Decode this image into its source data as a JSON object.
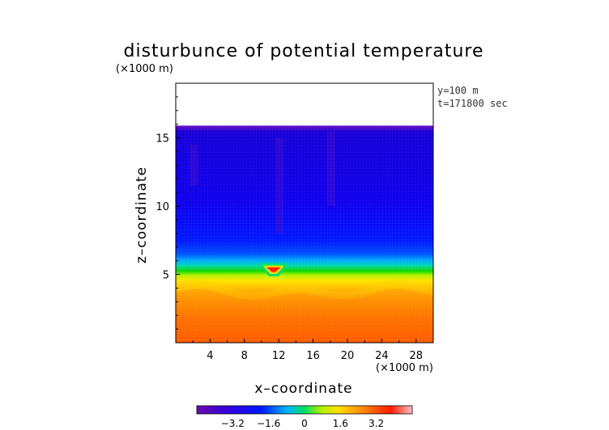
{
  "chart_data": {
    "type": "heatmap",
    "title": "disturbunce of potential temperature",
    "unit_top": "(×1000 m)",
    "annotations": [
      "y=100 m",
      "t=171800 sec"
    ],
    "xlabel": "x–coordinate",
    "xunit": "(×1000 m)",
    "ylabel": "z–coordinate",
    "xlim": [
      0,
      30
    ],
    "ylim": [
      0,
      19
    ],
    "x_ticks": [
      4,
      8,
      12,
      16,
      20,
      24,
      28
    ],
    "y_ticks": [
      5,
      10,
      15
    ],
    "colorbar": {
      "ticks": [
        "−3.2",
        "−1.6",
        "0",
        "1.6",
        "3.2"
      ],
      "tick_values": [
        -3.2,
        -1.6,
        0,
        1.6,
        3.2
      ],
      "range": [
        -4.8,
        4.8
      ]
    },
    "model_top_km": 15.9,
    "field_profile": [
      {
        "z": 0.0,
        "value": 4.0
      },
      {
        "z": 1.5,
        "value": 3.4
      },
      {
        "z": 3.0,
        "value": 2.6
      },
      {
        "z": 3.8,
        "value": 2.2
      },
      {
        "z": 4.6,
        "value": 1.3
      },
      {
        "z": 5.0,
        "value": 0.5
      },
      {
        "z": 5.5,
        "value": -0.6
      },
      {
        "z": 6.2,
        "value": -1.3
      },
      {
        "z": 7.5,
        "value": -2.1
      },
      {
        "z": 10.0,
        "value": -2.5
      },
      {
        "z": 15.0,
        "value": -2.6
      },
      {
        "z": 15.9,
        "value": -3.0
      }
    ],
    "features": [
      {
        "name": "warm-bubble",
        "x": 11.4,
        "z": 5.4,
        "value": 3.0
      }
    ]
  }
}
